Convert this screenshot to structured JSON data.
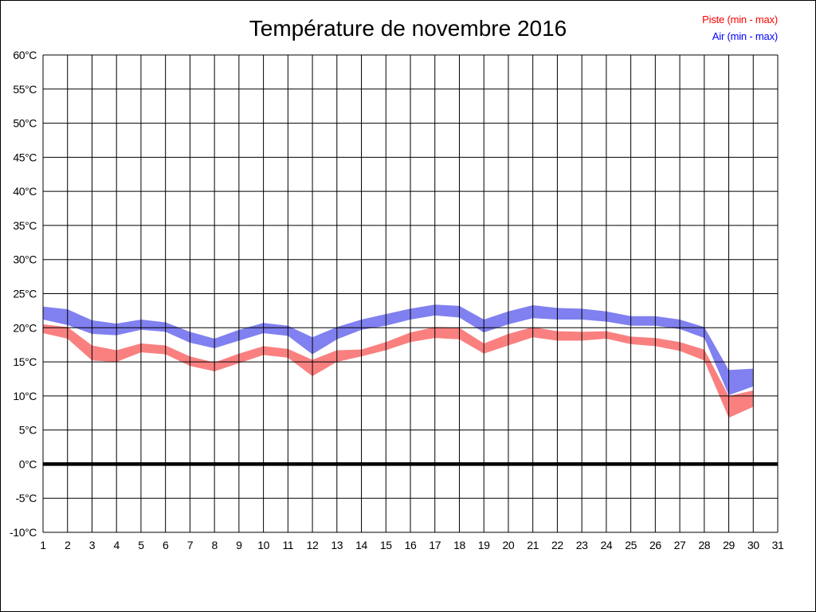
{
  "title": "Température de novembre 2016",
  "legend": {
    "piste_label": "Piste (min - max)",
    "air_label": "Air (min - max)",
    "piste_text_color": "#ff0000",
    "air_text_color": "#0000ff"
  },
  "chart_data": {
    "type": "area",
    "subtype": "min-max-band",
    "title": "Température de novembre 2016",
    "xlabel": "",
    "ylabel": "",
    "grid": true,
    "x_axis": {
      "min": 1,
      "max": 31,
      "tick_labels": [
        "1",
        "2",
        "3",
        "4",
        "5",
        "6",
        "7",
        "8",
        "9",
        "10",
        "11",
        "12",
        "13",
        "14",
        "15",
        "16",
        "17",
        "18",
        "19",
        "20",
        "21",
        "22",
        "23",
        "24",
        "25",
        "26",
        "27",
        "28",
        "29",
        "30",
        "31"
      ]
    },
    "y_axis": {
      "min": -10,
      "max": 60,
      "step": 5,
      "tick_labels": [
        "60°C",
        "55°C",
        "50°C",
        "45°C",
        "40°C",
        "35°C",
        "30°C",
        "25°C",
        "20°C",
        "15°C",
        "10°C",
        "5°C",
        "0°C",
        "-5°C",
        "-10°C"
      ],
      "zero_line_emphasized": true
    },
    "days": [
      1,
      2,
      3,
      4,
      5,
      6,
      7,
      8,
      9,
      10,
      11,
      12,
      13,
      14,
      15,
      16,
      17,
      18,
      19,
      20,
      21,
      22,
      23,
      24,
      25,
      26,
      27,
      28,
      29,
      30
    ],
    "series": [
      {
        "name": "Air (min - max)",
        "band_color": "#8080f0",
        "min": [
          21.2,
          20.4,
          19.1,
          18.9,
          19.7,
          19.4,
          17.8,
          17.0,
          18.1,
          19.2,
          18.8,
          16.1,
          18.3,
          19.7,
          20.3,
          21.2,
          21.8,
          21.5,
          19.3,
          20.5,
          21.4,
          21.2,
          21.2,
          20.9,
          20.3,
          20.3,
          19.8,
          18.5,
          10.1,
          11.4
        ],
        "max": [
          23.1,
          22.7,
          21.1,
          20.6,
          21.2,
          20.8,
          19.4,
          18.4,
          19.7,
          20.7,
          20.3,
          18.6,
          20.1,
          21.2,
          22.0,
          22.8,
          23.4,
          23.2,
          21.2,
          22.4,
          23.3,
          22.9,
          22.8,
          22.4,
          21.7,
          21.7,
          21.2,
          20.1,
          13.8,
          14.0
        ]
      },
      {
        "name": "Piste (min - max)",
        "band_color": "#fa8080",
        "min": [
          19.2,
          18.4,
          15.2,
          15.0,
          16.4,
          16.1,
          14.4,
          13.6,
          14.8,
          16.0,
          15.6,
          12.9,
          15.0,
          15.8,
          16.7,
          17.9,
          18.5,
          18.3,
          16.2,
          17.4,
          18.6,
          18.1,
          18.1,
          18.4,
          17.6,
          17.3,
          16.6,
          15.2,
          6.8,
          8.4
        ],
        "max": [
          20.5,
          20.1,
          17.4,
          16.7,
          17.7,
          17.4,
          15.8,
          14.9,
          16.2,
          17.3,
          16.9,
          15.3,
          16.7,
          16.8,
          17.9,
          19.3,
          20.1,
          20.0,
          17.7,
          19.1,
          20.1,
          19.5,
          19.4,
          19.5,
          18.7,
          18.5,
          17.9,
          16.8,
          10.0,
          10.8
        ]
      }
    ]
  }
}
